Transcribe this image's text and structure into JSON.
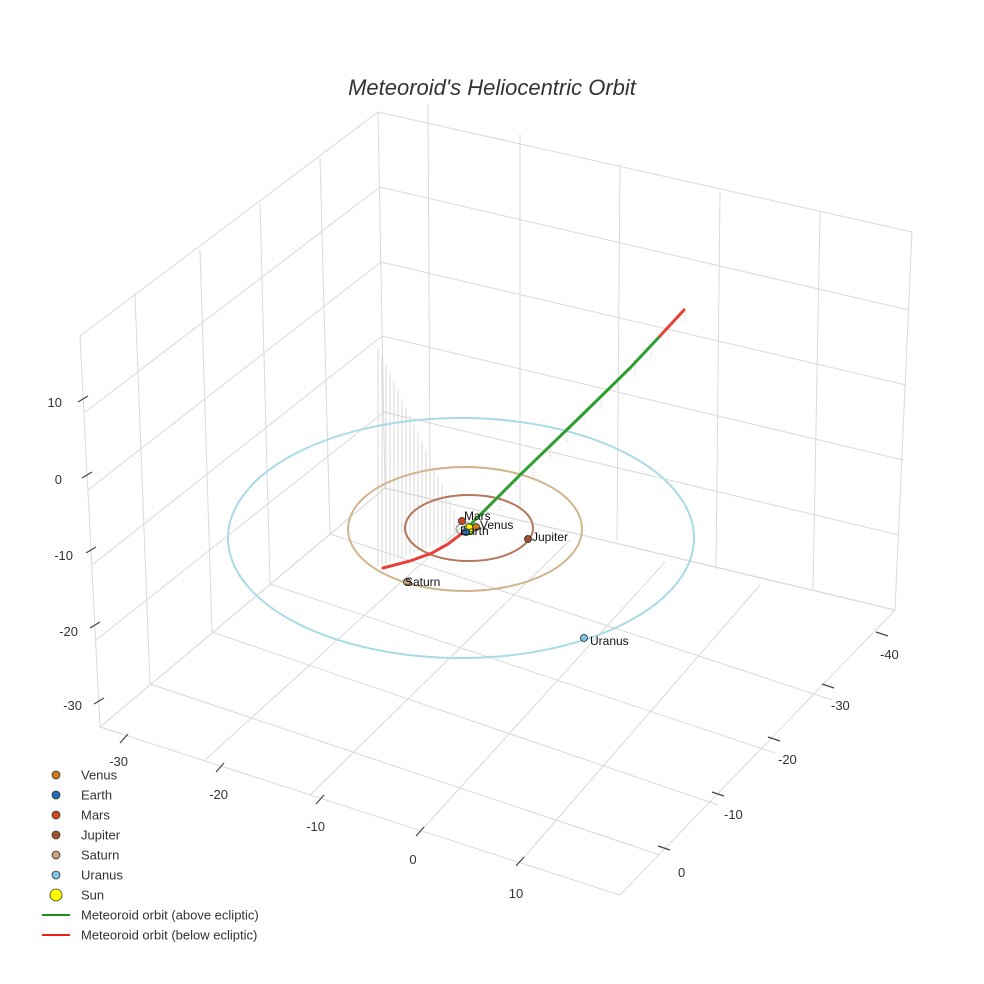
{
  "chart_data": {
    "type": "scatter",
    "title": "Meteoroid's Heliocentric Orbit",
    "axes": {
      "x": {
        "ticks": [
          -40,
          -30,
          -20,
          -10,
          0
        ]
      },
      "y": {
        "ticks": [
          -30,
          -20,
          -10,
          0,
          10
        ]
      },
      "z": {
        "ticks": [
          -30,
          -20,
          -10,
          0,
          10
        ]
      }
    },
    "grid": true,
    "legend_position": "bottom-left",
    "planets": [
      {
        "name": "Venus",
        "color": "#cc7a1a",
        "label": "Venus"
      },
      {
        "name": "Earth",
        "color": "#1f6fb5",
        "label": "Earth"
      },
      {
        "name": "Mars",
        "color": "#d0461e",
        "label": "Mars"
      },
      {
        "name": "Jupiter",
        "color": "#a0522d",
        "label": "Jupiter"
      },
      {
        "name": "Saturn",
        "color": "#c9a07a",
        "label": "Saturn"
      },
      {
        "name": "Uranus",
        "color": "#7ec8e3",
        "label": "Uranus"
      }
    ],
    "sun": {
      "name": "Sun",
      "color": "#ffff00"
    },
    "orbit_colors": {
      "Jupiter": "#b5775a",
      "Saturn": "#d2b48c",
      "Uranus": "#a8dbe8"
    },
    "meteoroid": {
      "above": {
        "name": "Meteoroid orbit (above ecliptic)",
        "color": "#2e9e2e"
      },
      "below": {
        "name": "Meteoroid orbit (below ecliptic)",
        "color": "#e8403a"
      }
    },
    "legend": [
      {
        "label": "Venus",
        "kind": "marker",
        "color": "#cc7a1a"
      },
      {
        "label": "Earth",
        "kind": "marker",
        "color": "#1f6fb5"
      },
      {
        "label": "Mars",
        "kind": "marker",
        "color": "#d0461e"
      },
      {
        "label": "Jupiter",
        "kind": "marker",
        "color": "#a0522d"
      },
      {
        "label": "Saturn",
        "kind": "marker",
        "color": "#c9a07a"
      },
      {
        "label": "Uranus",
        "kind": "marker",
        "color": "#7ec8e3"
      },
      {
        "label": "Sun",
        "kind": "sun",
        "color": "#ffff00"
      },
      {
        "label": "Meteoroid orbit (above ecliptic)",
        "kind": "line",
        "color": "#1a8f1a"
      },
      {
        "label": "Meteoroid orbit (below ecliptic)",
        "kind": "line",
        "color": "#e8201a"
      }
    ]
  }
}
